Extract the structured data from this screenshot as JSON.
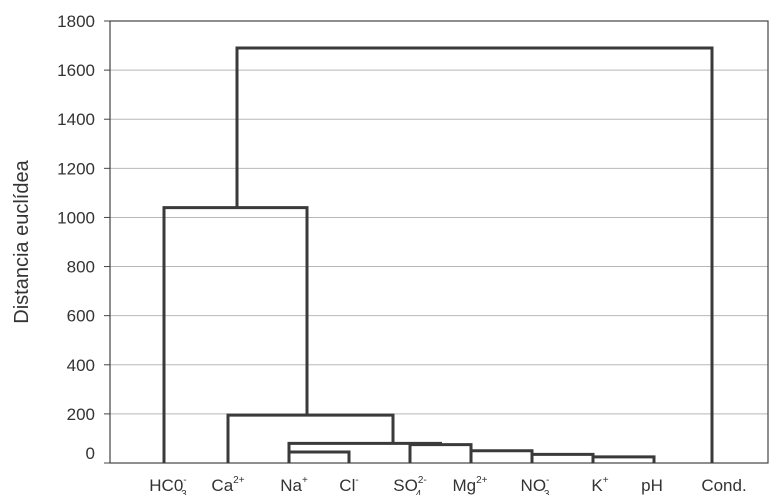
{
  "chart_data": {
    "type": "dendrogram",
    "ylabel": "Distancia euclídea",
    "ylim": [
      0,
      1800
    ],
    "yticks": [
      0,
      200,
      400,
      600,
      800,
      1000,
      1200,
      1400,
      1600,
      1800
    ],
    "grid": true,
    "leaves": [
      {
        "base": "HC0",
        "sup": "-",
        "sub": "3"
      },
      {
        "base": "Ca",
        "sup": "2+",
        "sub": ""
      },
      {
        "base": "Na",
        "sup": "+",
        "sub": ""
      },
      {
        "base": "Cl",
        "sup": "-",
        "sub": ""
      },
      {
        "base": "SO",
        "sup": "2-",
        "sub": "4"
      },
      {
        "base": "Mg",
        "sup": "2+",
        "sub": ""
      },
      {
        "base": "NO",
        "sup": "-",
        "sub": "3"
      },
      {
        "base": "K",
        "sup": "+",
        "sub": ""
      },
      {
        "base": "pH",
        "sup": "",
        "sub": ""
      },
      {
        "base": "Cond.",
        "sup": "",
        "sub": ""
      }
    ],
    "merges": [
      {
        "left": "NO3",
        "right": "K",
        "height": 35
      },
      {
        "left": "K",
        "right": "pH",
        "height": 25
      },
      {
        "left": "Na",
        "right": "Cl",
        "height": 45
      },
      {
        "left": "Mg",
        "right": "NO3",
        "height": 50
      },
      {
        "left": "SO4",
        "right": "Mg",
        "height": 75
      },
      {
        "left": "Na/Cl",
        "right": "SO4/Mg",
        "height": 80
      },
      {
        "left": "Ca",
        "right": "Na..pH",
        "height": 195
      },
      {
        "left": "HC03",
        "right": "Ca..pH",
        "height": 1040
      },
      {
        "left": "HC03..pH",
        "right": "Cond.",
        "height": 1690
      }
    ]
  }
}
